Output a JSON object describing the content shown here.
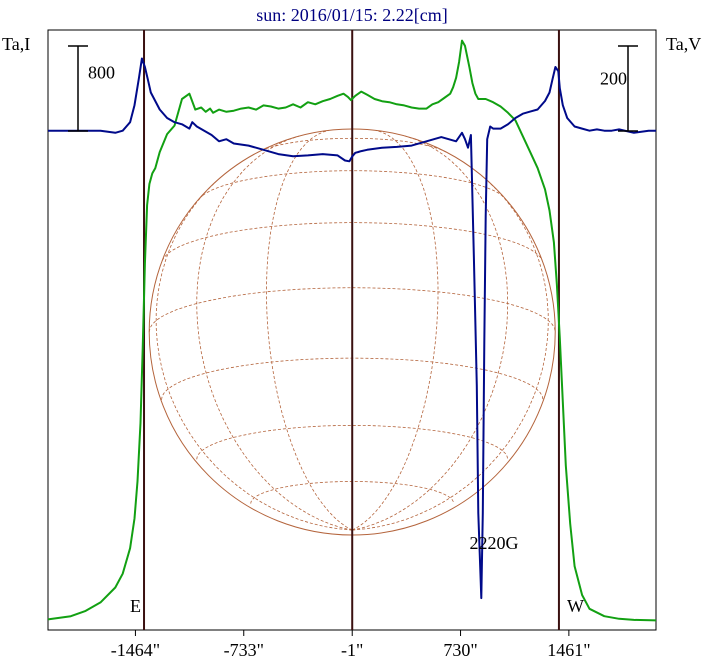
{
  "chart_data": {
    "type": "line",
    "title": "sun: 2016/01/15: 2.22[cm]",
    "left_axis_label": "Ta,I",
    "right_axis_label": "Ta,V",
    "x_unit": "arcsec",
    "xlim": [
      -2054,
      2049
    ],
    "x_ticks": [
      -1464,
      -733,
      -1,
      730,
      1461
    ],
    "x_tick_labels": [
      "-1464\"",
      "-733\"",
      "-1\"",
      "730\"",
      "1461\""
    ],
    "limb_markers": [
      {
        "label": "E",
        "x": -1406
      },
      {
        "label": "W",
        "x": 1394
      }
    ],
    "center_line_x": -1,
    "solar_disk_radius": 1370,
    "scale_bars": [
      {
        "axis": "left",
        "series": "I",
        "value": 800,
        "label": "800"
      },
      {
        "axis": "right",
        "series": "V",
        "value": 200,
        "label": "200"
      }
    ],
    "annotations": [
      {
        "text": "2220G",
        "x": 865
      }
    ],
    "ylim_I": [
      -50,
      5600
    ],
    "ylim_V": [
      -1175,
      237
    ],
    "series": [
      {
        "key": "I",
        "color": "#12a012",
        "axis": "left",
        "x": [
          -2054,
          -1900,
          -1800,
          -1700,
          -1600,
          -1550,
          -1500,
          -1470,
          -1450,
          -1430,
          -1415,
          -1400,
          -1385,
          -1370,
          -1350,
          -1330,
          -1300,
          -1250,
          -1200,
          -1150,
          -1100,
          -1060,
          -1020,
          -990,
          -960,
          -940,
          -900,
          -850,
          -800,
          -750,
          -700,
          -650,
          -600,
          -550,
          -500,
          -450,
          -400,
          -350,
          -300,
          -250,
          -200,
          -150,
          -100,
          -60,
          -30,
          -10,
          20,
          60,
          100,
          150,
          200,
          250,
          300,
          350,
          400,
          450,
          500,
          540,
          580,
          620,
          660,
          680,
          700,
          720,
          740,
          760,
          790,
          810,
          830,
          850,
          870,
          900,
          950,
          1000,
          1050,
          1100,
          1150,
          1200,
          1250,
          1300,
          1330,
          1360,
          1380,
          1400,
          1420,
          1440,
          1470,
          1500,
          1550,
          1600,
          1700,
          1800,
          1900,
          2049
        ],
        "values": [
          50,
          80,
          130,
          210,
          350,
          480,
          720,
          1000,
          1350,
          1900,
          2600,
          3400,
          3950,
          4150,
          4250,
          4300,
          4450,
          4620,
          4700,
          4950,
          5000,
          4850,
          4870,
          4830,
          4860,
          4820,
          4850,
          4830,
          4840,
          4860,
          4870,
          4850,
          4890,
          4880,
          4860,
          4870,
          4900,
          4870,
          4920,
          4900,
          4930,
          4950,
          4980,
          5000,
          4970,
          4940,
          4980,
          5020,
          4990,
          4950,
          4930,
          4920,
          4900,
          4890,
          4870,
          4860,
          4860,
          4900,
          4920,
          4960,
          5000,
          5060,
          5150,
          5300,
          5500,
          5450,
          5250,
          5100,
          5000,
          4950,
          4950,
          4950,
          4920,
          4880,
          4820,
          4750,
          4600,
          4450,
          4300,
          4100,
          3900,
          3600,
          3200,
          2700,
          2100,
          1500,
          950,
          550,
          280,
          150,
          80,
          55,
          45,
          40
        ]
      },
      {
        "key": "V",
        "color": "#000a8a",
        "axis": "right",
        "x": [
          -2054,
          -1900,
          -1800,
          -1700,
          -1600,
          -1550,
          -1500,
          -1470,
          -1440,
          -1420,
          -1400,
          -1380,
          -1360,
          -1300,
          -1250,
          -1200,
          -1150,
          -1100,
          -1080,
          -1050,
          -1000,
          -950,
          -900,
          -850,
          -800,
          -700,
          -600,
          -500,
          -400,
          -300,
          -200,
          -100,
          -50,
          -20,
          0,
          20,
          40,
          60,
          100,
          200,
          300,
          400,
          500,
          600,
          650,
          700,
          740,
          760,
          780,
          800,
          820,
          840,
          850,
          860,
          870,
          880,
          890,
          900,
          910,
          930,
          950,
          1000,
          1050,
          1100,
          1150,
          1200,
          1250,
          1300,
          1330,
          1350,
          1370,
          1390,
          1400,
          1420,
          1450,
          1500,
          1550,
          1600,
          1650,
          1700,
          1750,
          1800,
          1900,
          2000,
          2049
        ],
        "values": [
          0,
          0,
          0,
          0,
          -5,
          0,
          20,
          60,
          125,
          170,
          150,
          120,
          90,
          50,
          30,
          20,
          15,
          5,
          20,
          10,
          0,
          -10,
          -25,
          -20,
          -30,
          -35,
          -45,
          -55,
          -60,
          -58,
          -55,
          -58,
          -70,
          -72,
          -60,
          -52,
          -50,
          -48,
          -45,
          -40,
          -38,
          -35,
          -25,
          -15,
          -20,
          -25,
          -5,
          -20,
          -40,
          -10,
          -300,
          -600,
          -900,
          -1000,
          -1100,
          -900,
          -500,
          -200,
          -20,
          10,
          5,
          5,
          15,
          30,
          40,
          45,
          50,
          70,
          90,
          120,
          150,
          140,
          100,
          60,
          30,
          10,
          5,
          0,
          3,
          0,
          0,
          3,
          -5,
          0,
          0
        ]
      }
    ],
    "annotation_value": "2220G",
    "sun": {
      "label_E": "E",
      "label_W": "W"
    }
  }
}
